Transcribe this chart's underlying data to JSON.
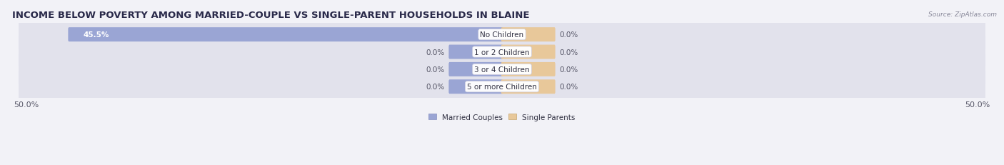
{
  "title": "INCOME BELOW POVERTY AMONG MARRIED-COUPLE VS SINGLE-PARENT HOUSEHOLDS IN BLAINE",
  "source": "Source: ZipAtlas.com",
  "categories": [
    "No Children",
    "1 or 2 Children",
    "3 or 4 Children",
    "5 or more Children"
  ],
  "married_values": [
    45.5,
    0.0,
    0.0,
    0.0
  ],
  "single_values": [
    0.0,
    0.0,
    0.0,
    0.0
  ],
  "married_color": "#9aa5d4",
  "single_color": "#e8c89a",
  "married_color_light": "#b0bbdf",
  "single_color_light": "#edd9b5",
  "bg_color": "#f2f2f7",
  "row_bg_color": "#e2e2ec",
  "x_min": -50.0,
  "x_max": 50.0,
  "x_tick_labels": [
    "50.0%",
    "50.0%"
  ],
  "legend_labels": [
    "Married Couples",
    "Single Parents"
  ],
  "title_fontsize": 9.5,
  "label_fontsize": 7.5,
  "tick_fontsize": 8,
  "stub_married": 5.5,
  "stub_single": 5.5
}
